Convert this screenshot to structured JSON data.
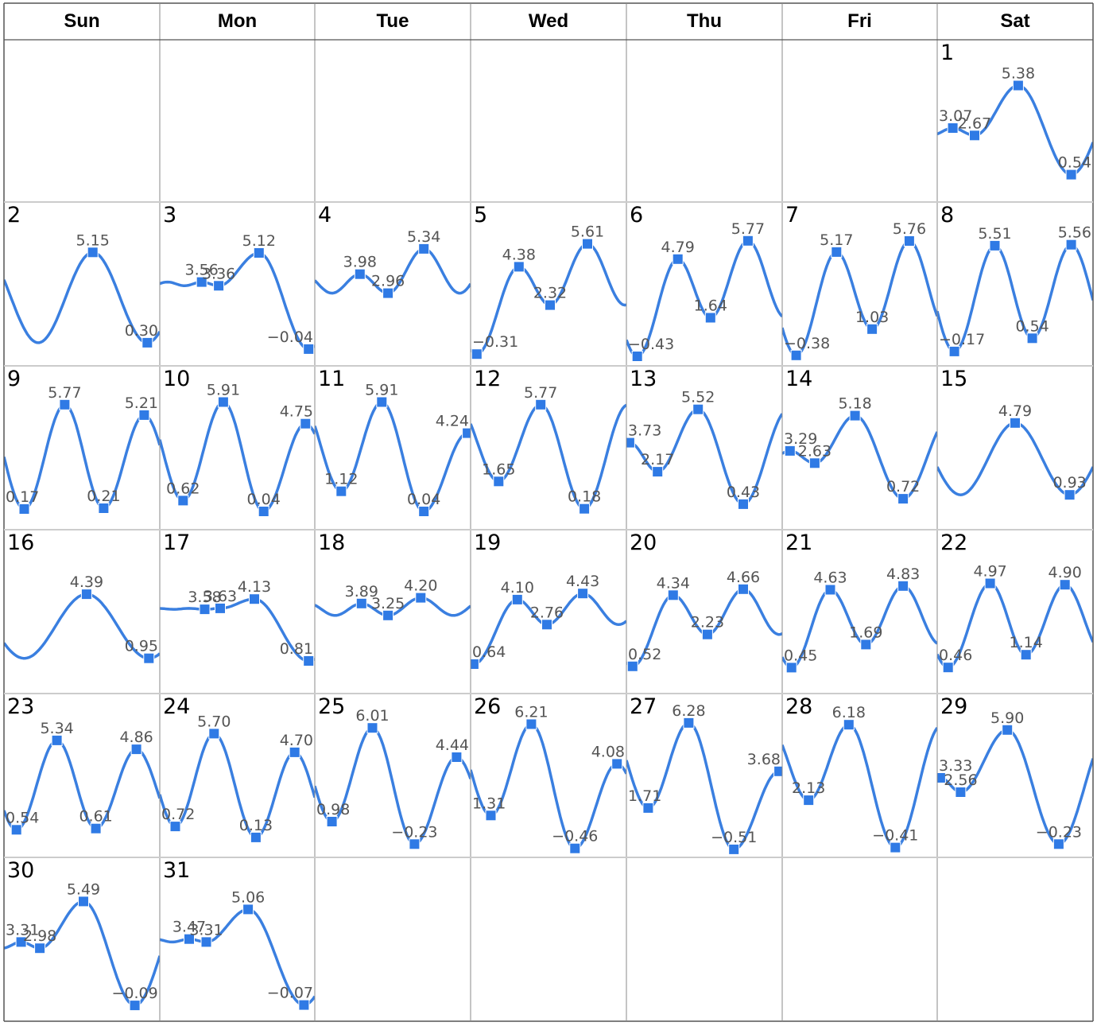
{
  "weekdays": [
    "Sun",
    "Mon",
    "Tue",
    "Wed",
    "Thu",
    "Fri",
    "Sat"
  ],
  "colors": {
    "line": "#3a7fe0",
    "marker": "#2f7ae5",
    "label": "#555555",
    "grid": "#cccccc",
    "border": "#555555"
  },
  "chart_data": {
    "type": "line",
    "first_weekday_index": 6,
    "days": [
      {
        "day": "1",
        "points": [
          {
            "t": 0.1,
            "v": 3.07
          },
          {
            "t": 0.24,
            "v": 2.67
          },
          {
            "t": 0.52,
            "v": 5.38
          },
          {
            "t": 0.86,
            "v": 0.54
          }
        ]
      },
      {
        "day": "2",
        "points": [
          {
            "t": 0.57,
            "v": 5.15
          },
          {
            "t": 0.92,
            "v": 0.3
          }
        ]
      },
      {
        "day": "3",
        "points": [
          {
            "t": 0.27,
            "v": 3.56
          },
          {
            "t": 0.38,
            "v": 3.36
          },
          {
            "t": 0.64,
            "v": 5.12
          },
          {
            "t": 0.96,
            "v": -0.04
          }
        ]
      },
      {
        "day": "4",
        "points": [
          {
            "t": 0.29,
            "v": 3.98
          },
          {
            "t": 0.47,
            "v": 2.96
          },
          {
            "t": 0.7,
            "v": 5.34
          }
        ]
      },
      {
        "day": "5",
        "points": [
          {
            "t": 0.04,
            "v": -0.31
          },
          {
            "t": 0.31,
            "v": 4.38
          },
          {
            "t": 0.51,
            "v": 2.32
          },
          {
            "t": 0.75,
            "v": 5.61
          }
        ]
      },
      {
        "day": "6",
        "points": [
          {
            "t": 0.07,
            "v": -0.43
          },
          {
            "t": 0.33,
            "v": 4.79
          },
          {
            "t": 0.54,
            "v": 1.64
          },
          {
            "t": 0.78,
            "v": 5.77
          }
        ]
      },
      {
        "day": "7",
        "points": [
          {
            "t": 0.09,
            "v": -0.38
          },
          {
            "t": 0.35,
            "v": 5.17
          },
          {
            "t": 0.58,
            "v": 1.03
          },
          {
            "t": 0.82,
            "v": 5.76
          }
        ]
      },
      {
        "day": "8",
        "points": [
          {
            "t": 0.11,
            "v": -0.17
          },
          {
            "t": 0.37,
            "v": 5.51
          },
          {
            "t": 0.61,
            "v": 0.54
          },
          {
            "t": 0.86,
            "v": 5.56
          }
        ]
      },
      {
        "day": "9",
        "points": [
          {
            "t": 0.13,
            "v": 0.17
          },
          {
            "t": 0.39,
            "v": 5.77
          },
          {
            "t": 0.64,
            "v": 0.21
          },
          {
            "t": 0.9,
            "v": 5.21
          }
        ]
      },
      {
        "day": "10",
        "points": [
          {
            "t": 0.15,
            "v": 0.62
          },
          {
            "t": 0.41,
            "v": 5.91
          },
          {
            "t": 0.67,
            "v": 0.04
          },
          {
            "t": 0.94,
            "v": 4.75
          }
        ]
      },
      {
        "day": "11",
        "points": [
          {
            "t": 0.17,
            "v": 1.12
          },
          {
            "t": 0.43,
            "v": 5.91
          },
          {
            "t": 0.7,
            "v": 0.04
          },
          {
            "t": 0.98,
            "v": 4.24
          }
        ]
      },
      {
        "day": "12",
        "points": [
          {
            "t": 0.18,
            "v": 1.65
          },
          {
            "t": 0.45,
            "v": 5.77
          },
          {
            "t": 0.73,
            "v": 0.18
          }
        ]
      },
      {
        "day": "13",
        "points": [
          {
            "t": 0.02,
            "v": 3.73
          },
          {
            "t": 0.2,
            "v": 2.17
          },
          {
            "t": 0.46,
            "v": 5.52
          },
          {
            "t": 0.75,
            "v": 0.43
          }
        ]
      },
      {
        "day": "14",
        "points": [
          {
            "t": 0.05,
            "v": 3.29
          },
          {
            "t": 0.21,
            "v": 2.63
          },
          {
            "t": 0.47,
            "v": 5.18
          },
          {
            "t": 0.78,
            "v": 0.72
          }
        ]
      },
      {
        "day": "15",
        "points": [
          {
            "t": 0.5,
            "v": 4.79
          },
          {
            "t": 0.85,
            "v": 0.93
          }
        ]
      },
      {
        "day": "16",
        "points": [
          {
            "t": 0.53,
            "v": 4.39
          },
          {
            "t": 0.93,
            "v": 0.95
          }
        ]
      },
      {
        "day": "17",
        "points": [
          {
            "t": 0.29,
            "v": 3.58
          },
          {
            "t": 0.39,
            "v": 3.63
          },
          {
            "t": 0.61,
            "v": 4.13
          },
          {
            "t": 0.96,
            "v": 0.81
          }
        ]
      },
      {
        "day": "18",
        "points": [
          {
            "t": 0.3,
            "v": 3.89
          },
          {
            "t": 0.47,
            "v": 3.25
          },
          {
            "t": 0.68,
            "v": 4.2
          }
        ]
      },
      {
        "day": "19",
        "points": [
          {
            "t": 0.02,
            "v": 0.64
          },
          {
            "t": 0.3,
            "v": 4.1
          },
          {
            "t": 0.49,
            "v": 2.76
          },
          {
            "t": 0.72,
            "v": 4.43
          }
        ]
      },
      {
        "day": "20",
        "points": [
          {
            "t": 0.04,
            "v": 0.52
          },
          {
            "t": 0.3,
            "v": 4.34
          },
          {
            "t": 0.52,
            "v": 2.23
          },
          {
            "t": 0.75,
            "v": 4.66
          }
        ]
      },
      {
        "day": "21",
        "points": [
          {
            "t": 0.06,
            "v": 0.45
          },
          {
            "t": 0.31,
            "v": 4.63
          },
          {
            "t": 0.54,
            "v": 1.69
          },
          {
            "t": 0.78,
            "v": 4.83
          }
        ]
      },
      {
        "day": "22",
        "points": [
          {
            "t": 0.07,
            "v": 0.46
          },
          {
            "t": 0.34,
            "v": 4.97
          },
          {
            "t": 0.57,
            "v": 1.14
          },
          {
            "t": 0.82,
            "v": 4.9
          }
        ]
      },
      {
        "day": "23",
        "points": [
          {
            "t": 0.08,
            "v": 0.54
          },
          {
            "t": 0.34,
            "v": 5.34
          },
          {
            "t": 0.59,
            "v": 0.61
          },
          {
            "t": 0.85,
            "v": 4.86
          }
        ]
      },
      {
        "day": "24",
        "points": [
          {
            "t": 0.1,
            "v": 0.72
          },
          {
            "t": 0.35,
            "v": 5.7
          },
          {
            "t": 0.62,
            "v": 0.13
          },
          {
            "t": 0.87,
            "v": 4.7
          }
        ]
      },
      {
        "day": "25",
        "points": [
          {
            "t": 0.11,
            "v": 0.98
          },
          {
            "t": 0.37,
            "v": 6.01
          },
          {
            "t": 0.64,
            "v": -0.23
          },
          {
            "t": 0.91,
            "v": 4.44
          }
        ]
      },
      {
        "day": "26",
        "points": [
          {
            "t": 0.13,
            "v": 1.31
          },
          {
            "t": 0.39,
            "v": 6.21
          },
          {
            "t": 0.67,
            "v": -0.46
          },
          {
            "t": 0.94,
            "v": 4.08
          }
        ]
      },
      {
        "day": "27",
        "points": [
          {
            "t": 0.14,
            "v": 1.71
          },
          {
            "t": 0.4,
            "v": 6.28
          },
          {
            "t": 0.69,
            "v": -0.51
          },
          {
            "t": 0.98,
            "v": 3.68
          }
        ]
      },
      {
        "day": "28",
        "points": [
          {
            "t": 0.17,
            "v": 2.13
          },
          {
            "t": 0.43,
            "v": 6.18
          },
          {
            "t": 0.73,
            "v": -0.41
          }
        ]
      },
      {
        "day": "29",
        "points": [
          {
            "t": 0.02,
            "v": 3.33
          },
          {
            "t": 0.15,
            "v": 2.56
          },
          {
            "t": 0.45,
            "v": 5.9
          },
          {
            "t": 0.78,
            "v": -0.23
          }
        ]
      },
      {
        "day": "30",
        "points": [
          {
            "t": 0.11,
            "v": 3.31
          },
          {
            "t": 0.23,
            "v": 2.98
          },
          {
            "t": 0.51,
            "v": 5.49
          },
          {
            "t": 0.84,
            "v": -0.09
          }
        ]
      },
      {
        "day": "31",
        "points": [
          {
            "t": 0.19,
            "v": 3.47
          },
          {
            "t": 0.3,
            "v": 3.31
          },
          {
            "t": 0.57,
            "v": 5.06
          },
          {
            "t": 0.93,
            "v": -0.07
          }
        ]
      }
    ],
    "ylim": [
      -0.6,
      7.0
    ],
    "grid": true
  }
}
